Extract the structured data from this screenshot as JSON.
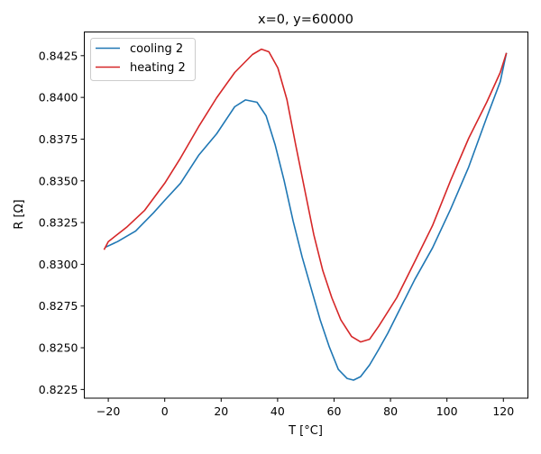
{
  "chart_data": {
    "type": "line",
    "title": "x=0, y=60000",
    "xlabel": "T [°C]",
    "ylabel": "R [Ω]",
    "xlim": [
      -28.5,
      128.7
    ],
    "ylim": [
      0.82198,
      0.84392
    ],
    "xticks": [
      -20,
      0,
      20,
      40,
      60,
      80,
      100,
      120
    ],
    "xtick_labels": [
      "−20",
      "0",
      "20",
      "40",
      "60",
      "80",
      "100",
      "120"
    ],
    "yticks": [
      0.8225,
      0.825,
      0.8275,
      0.83,
      0.8325,
      0.835,
      0.8375,
      0.84,
      0.8425
    ],
    "ytick_labels": [
      "0.8225",
      "0.8250",
      "0.8275",
      "0.8300",
      "0.8325",
      "0.8350",
      "0.8375",
      "0.8400",
      "0.8425"
    ],
    "grid": false,
    "legend_placement": "top-left",
    "series": [
      {
        "name": "cooling 2",
        "color": "#1f77b4",
        "x": [
          -20.9,
          -16.7,
          -10.3,
          -4,
          0,
          5.6,
          12,
          18.4,
          24.8,
          28.6,
          32.7,
          35.9,
          39.1,
          42.3,
          45.5,
          48.7,
          51.9,
          55.1,
          58.3,
          61.5,
          64.6,
          66.9,
          69.4,
          72.6,
          75.8,
          79,
          82.2,
          88.6,
          94.9,
          101.3,
          107.7,
          114.1,
          118.9,
          121.1
        ],
        "y": [
          0.83103,
          0.83136,
          0.832,
          0.83308,
          0.83383,
          0.83486,
          0.83653,
          0.83782,
          0.83944,
          0.83985,
          0.83971,
          0.8389,
          0.83717,
          0.83502,
          0.83259,
          0.83044,
          0.82855,
          0.82667,
          0.82505,
          0.8237,
          0.82316,
          0.82306,
          0.82327,
          0.82397,
          0.82489,
          0.82586,
          0.82694,
          0.82909,
          0.83098,
          0.8333,
          0.83583,
          0.8388,
          0.84094,
          0.84267
        ]
      },
      {
        "name": "heating 2",
        "color": "#d62728",
        "x": [
          -21.5,
          -20,
          -13.5,
          -7.1,
          0,
          5.6,
          12,
          18.4,
          24.8,
          31.1,
          34.3,
          36.9,
          40.1,
          43.3,
          46.4,
          49.6,
          52.8,
          56,
          59.2,
          62.4,
          66.2,
          69.4,
          72.6,
          75.8,
          82.2,
          88.6,
          94.9,
          101.3,
          107.7,
          114.1,
          118.9,
          121.1
        ],
        "y": [
          0.83087,
          0.83136,
          0.83222,
          0.83324,
          0.83486,
          0.83637,
          0.83825,
          0.83998,
          0.84149,
          0.84257,
          0.84289,
          0.84273,
          0.84176,
          0.83987,
          0.83717,
          0.83448,
          0.83178,
          0.82962,
          0.828,
          0.82667,
          0.82567,
          0.82535,
          0.82551,
          0.82628,
          0.828,
          0.83016,
          0.83232,
          0.83502,
          0.83755,
          0.83971,
          0.84149,
          0.84267
        ]
      }
    ]
  }
}
